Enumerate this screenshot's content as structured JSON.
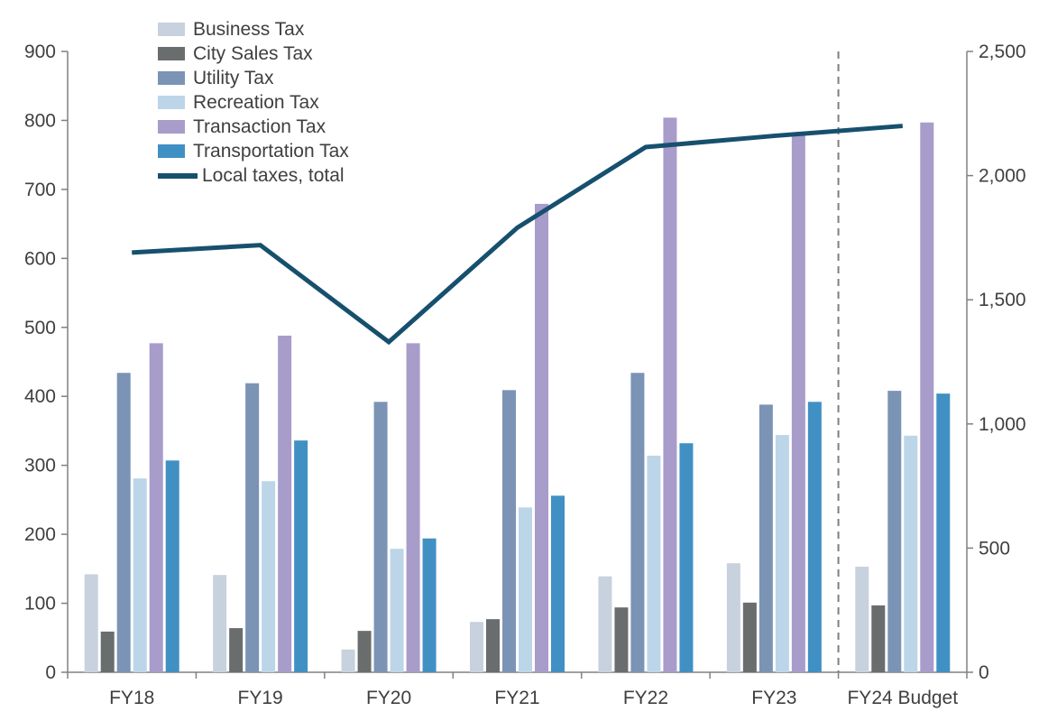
{
  "chart_data": {
    "type": "bar",
    "subtype": "grouped-bars-with-line-overlay",
    "categories": [
      "FY18",
      "FY19",
      "FY20",
      "FY21",
      "FY22",
      "FY23",
      "FY24 Budget"
    ],
    "bar_series": [
      {
        "name": "Business Tax",
        "color": "#c8d1de",
        "axis": "left",
        "values": [
          142,
          141,
          33,
          73,
          139,
          158,
          153
        ]
      },
      {
        "name": "City Sales Tax",
        "color": "#6a6d6e",
        "axis": "left",
        "values": [
          59,
          64,
          60,
          77,
          94,
          101,
          97
        ]
      },
      {
        "name": "Utility Tax",
        "color": "#7b93b5",
        "axis": "left",
        "values": [
          434,
          419,
          392,
          409,
          434,
          388,
          408
        ]
      },
      {
        "name": "Recreation Tax",
        "color": "#bcd5e9",
        "axis": "left",
        "values": [
          281,
          277,
          179,
          239,
          314,
          344,
          343
        ]
      },
      {
        "name": "Transaction Tax",
        "color": "#a89cca",
        "axis": "left",
        "values": [
          477,
          488,
          477,
          679,
          804,
          778,
          797
        ]
      },
      {
        "name": "Transportation Tax",
        "color": "#4190c4",
        "axis": "left",
        "values": [
          307,
          336,
          194,
          256,
          332,
          392,
          404
        ]
      }
    ],
    "line_series": {
      "name": "Local taxes, total",
      "color": "#17506e",
      "axis": "right",
      "values": [
        1690,
        1720,
        1330,
        1790,
        2115,
        2160,
        2200
      ]
    },
    "left_axis": {
      "min": 0,
      "max": 900,
      "step": 100,
      "tick_labels": [
        "0",
        "100",
        "200",
        "300",
        "400",
        "500",
        "600",
        "700",
        "800",
        "900"
      ]
    },
    "right_axis": {
      "min": 0,
      "max": 2500,
      "step": 500,
      "tick_labels": [
        "0",
        "500",
        "1,000",
        "1,500",
        "2,000",
        "2,500"
      ]
    },
    "separator": {
      "before_category": "FY24 Budget",
      "style": "dashed",
      "color": "#7f7f7f"
    },
    "legend_position": "top-left-inside",
    "grid": "off",
    "axis_color": "#808080",
    "text_color": "#3f3f3f"
  }
}
